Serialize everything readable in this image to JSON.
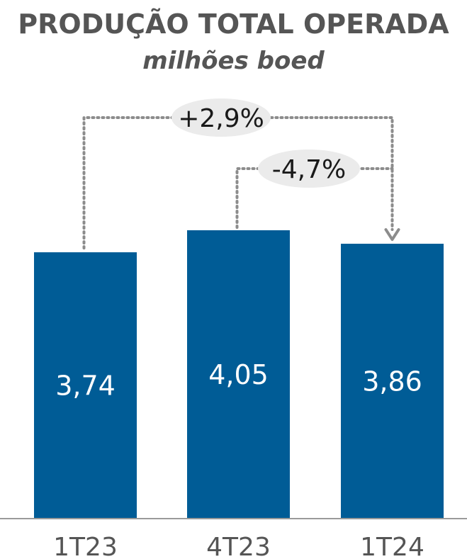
{
  "header": {
    "title": "PRODUÇÃO TOTAL OPERADA",
    "subtitle": "milhões boed"
  },
  "colors": {
    "bar": "#005C96",
    "title": "#555555",
    "connector": "#8c8c8c",
    "badge": "#ebebeb"
  },
  "chart_data": {
    "type": "bar",
    "categories": [
      "1T23",
      "4T23",
      "1T24"
    ],
    "values": [
      3.74,
      4.05,
      3.86
    ],
    "value_labels": [
      "3,74",
      "4,05",
      "3,86"
    ],
    "ylim": [
      0,
      4.05
    ],
    "annotations": [
      {
        "label": "+2,9%",
        "from": "1T23",
        "to": "1T24"
      },
      {
        "label": "-4,7%",
        "from": "4T23",
        "to": "1T24"
      }
    ]
  }
}
